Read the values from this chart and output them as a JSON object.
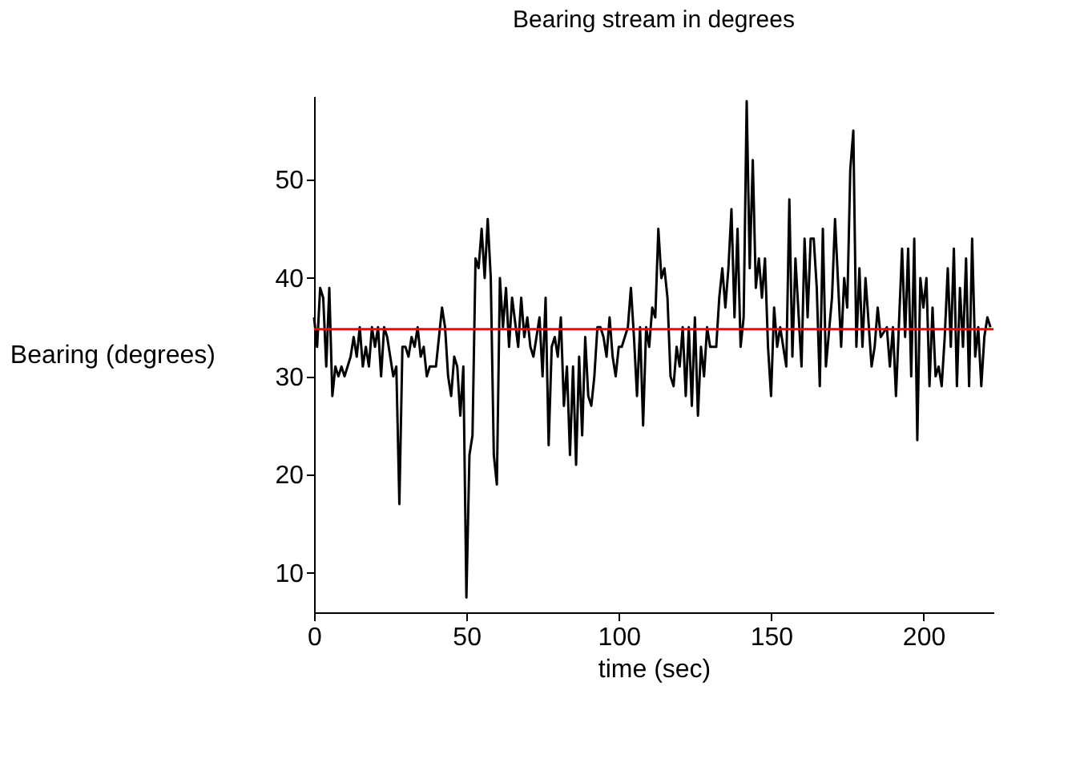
{
  "chart_data": {
    "type": "line",
    "title": "Bearing stream in degrees",
    "xlabel": "time (sec)",
    "ylabel": "Bearing (degrees)",
    "x": [
      0,
      1,
      2,
      3,
      4,
      5,
      6,
      7,
      8,
      9,
      10,
      12,
      13,
      14,
      15,
      16,
      17,
      18,
      19,
      20,
      21,
      22,
      23,
      24,
      25,
      26,
      27,
      28,
      29,
      30,
      31,
      32,
      33,
      34,
      35,
      36,
      37,
      38,
      39,
      40,
      41,
      42,
      43,
      44,
      45,
      46,
      47,
      48,
      49,
      50,
      51,
      52,
      53,
      54,
      55,
      56,
      57,
      58,
      59,
      60,
      61,
      62,
      63,
      64,
      65,
      67,
      68,
      69,
      70,
      71,
      72,
      74,
      75,
      76,
      77,
      78,
      79,
      80,
      81,
      82,
      83,
      84,
      85,
      86,
      87,
      88,
      89,
      90,
      91,
      92,
      93,
      94,
      95,
      96,
      97,
      98,
      99,
      100,
      101,
      102,
      103,
      104,
      105,
      106,
      107,
      108,
      109,
      110,
      111,
      112,
      113,
      114,
      115,
      116,
      117,
      118,
      119,
      120,
      121,
      122,
      123,
      124,
      125,
      126,
      127,
      128,
      129,
      130,
      131,
      132,
      133,
      134,
      135,
      136,
      137,
      138,
      139,
      140,
      141,
      142,
      143,
      144,
      145,
      146,
      147,
      148,
      149,
      150,
      151,
      152,
      153,
      155,
      156,
      157,
      158,
      160,
      161,
      162,
      163,
      164,
      165,
      166,
      167,
      168,
      170,
      171,
      173,
      174,
      175,
      176,
      177,
      178,
      179,
      180,
      181,
      183,
      184,
      185,
      186,
      188,
      189,
      190,
      191,
      193,
      194,
      195,
      196,
      197,
      198,
      199,
      200,
      201,
      202,
      203,
      204,
      205,
      206,
      207,
      208,
      209,
      210,
      211,
      212,
      213,
      214,
      215,
      216,
      217,
      218,
      219,
      220,
      221,
      222
    ],
    "series": [
      {
        "color": "#000000",
        "values": [
          36,
          33,
          39,
          38,
          31,
          39,
          28,
          31,
          30,
          31,
          30,
          32,
          34,
          32,
          35,
          31,
          33,
          31,
          35,
          33,
          35,
          30,
          35,
          34,
          32,
          30,
          31,
          17,
          33,
          33,
          32,
          34,
          33,
          35,
          32,
          33,
          30,
          31,
          31,
          31,
          34,
          37,
          35,
          30,
          28,
          32,
          31,
          26,
          31,
          7.5,
          22,
          24,
          42,
          41,
          45,
          40,
          46,
          40,
          22,
          19,
          40,
          35,
          39,
          33,
          38,
          33,
          38,
          34,
          36,
          33,
          32,
          36,
          30,
          38,
          23,
          33,
          34,
          32,
          36,
          27,
          31,
          22,
          31,
          21,
          32,
          24,
          34,
          28,
          27,
          30,
          35,
          35,
          34,
          32,
          36,
          32,
          30,
          33,
          33,
          34,
          35,
          39,
          34,
          28,
          35,
          25,
          35,
          33,
          37,
          36,
          45,
          40,
          41,
          38,
          30,
          29,
          33,
          31,
          35,
          28,
          35,
          27,
          36,
          26,
          33,
          30,
          35,
          33,
          33,
          33,
          38,
          41,
          37,
          41,
          47,
          36,
          45,
          33,
          36,
          58,
          41,
          52,
          39,
          42,
          38,
          42,
          33,
          28,
          37,
          33,
          35,
          31,
          48,
          32,
          42,
          31,
          44,
          36,
          44,
          44,
          39,
          29,
          45,
          31,
          38,
          46,
          33,
          40,
          37,
          51,
          55,
          33,
          41,
          33,
          40,
          31,
          33,
          37,
          34,
          35,
          31,
          35,
          28,
          43,
          34,
          43,
          30,
          44,
          23.5,
          40,
          37,
          40,
          29,
          37,
          30,
          31,
          29,
          34,
          41,
          33,
          43,
          29,
          39,
          33,
          42,
          29,
          44,
          32,
          35,
          29,
          34,
          36,
          35
        ]
      }
    ],
    "xlim": [
      0,
      223
    ],
    "ylim": [
      6,
      58.5
    ],
    "xticks": [
      0,
      50,
      100,
      150,
      200
    ],
    "yticks": [
      10,
      20,
      30,
      40,
      50
    ],
    "ref_lines": [
      {
        "axis": "y",
        "value": 34.8,
        "color": "#ff0000"
      }
    ],
    "grid": false
  }
}
